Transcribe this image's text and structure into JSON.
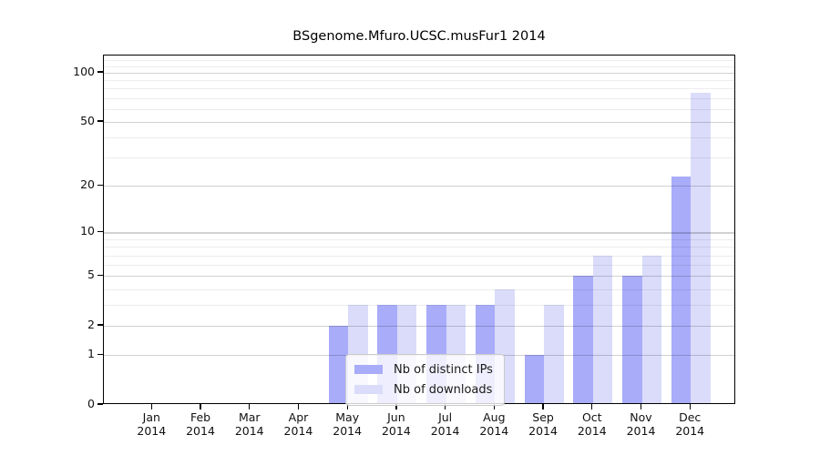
{
  "chart_data": {
    "type": "bar",
    "title": "BSgenome.Mfuro.UCSC.musFur1 2014",
    "categories": [
      "Jan 2014",
      "Feb 2014",
      "Mar 2014",
      "Apr 2014",
      "May 2014",
      "Jun 2014",
      "Jul 2014",
      "Aug 2014",
      "Sep 2014",
      "Oct 2014",
      "Nov 2014",
      "Dec 2014"
    ],
    "series": [
      {
        "name": "Nb of distinct IPs",
        "color": "#a8acf9",
        "values": [
          0,
          0,
          0,
          0,
          2,
          3,
          3,
          3,
          1,
          5,
          5,
          23
        ]
      },
      {
        "name": "Nb of downloads",
        "color": "#dadcfa",
        "values": [
          0,
          0,
          0,
          0,
          3,
          3,
          3,
          4,
          3,
          7,
          7,
          75
        ]
      }
    ],
    "xlabel": "",
    "ylabel": "",
    "yscale": "log1p",
    "ylim": [
      0,
      128
    ],
    "yticks": [
      0,
      1,
      2,
      5,
      10,
      20,
      50,
      100
    ],
    "minor_gridlines": [
      3,
      4,
      6,
      7,
      8,
      9,
      30,
      40,
      60,
      70,
      80,
      90,
      110,
      120
    ],
    "grid": "on",
    "legend_position": "inside-bottom-center",
    "colors": {
      "frame": "#000000",
      "text": "#111111",
      "major_grid": "#d2d2d2",
      "minor_grid": "#ececec",
      "background": "#ffffff"
    }
  }
}
